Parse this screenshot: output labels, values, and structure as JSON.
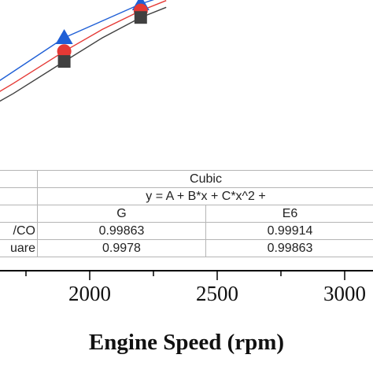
{
  "chart_data": {
    "type": "scatter",
    "xlabel": "Engine Speed (rpm)",
    "x_ticks": [
      "2000",
      "2500",
      "3000"
    ],
    "series": [
      {
        "color": "#1f5fd6",
        "marker": "triangle",
        "x": [
          1900,
          2200
        ],
        "y": [
          0.8,
          1.0
        ]
      },
      {
        "color": "#e53935",
        "marker": "circle",
        "x": [
          1900,
          2200
        ],
        "y": [
          0.72,
          0.96
        ]
      },
      {
        "color": "#404040",
        "marker": "square",
        "x": [
          1900,
          2200
        ],
        "y": [
          0.66,
          0.92
        ]
      }
    ],
    "fit_lines": [
      {
        "color": "#1f5fd6",
        "x": [
          1500,
          1700,
          1900,
          2050,
          2200,
          2300
        ],
        "y": [
          0.4,
          0.6,
          0.8,
          0.9,
          1.0,
          1.05
        ]
      },
      {
        "color": "#e53935",
        "x": [
          1500,
          1700,
          1900,
          2050,
          2200,
          2300
        ],
        "y": [
          0.35,
          0.53,
          0.72,
          0.85,
          0.96,
          1.02
        ]
      },
      {
        "color": "#404040",
        "x": [
          1500,
          1700,
          1900,
          2050,
          2200,
          2300
        ],
        "y": [
          0.3,
          0.47,
          0.66,
          0.8,
          0.92,
          0.98
        ]
      }
    ],
    "fit_table": {
      "model": "Cubic",
      "equation": "y = A + B*x + C*x^2 +",
      "col_headers": [
        "G",
        "E6"
      ],
      "rows": [
        {
          "label": "/CO",
          "values": [
            "0.99863",
            "0.99914"
          ]
        },
        {
          "label": "uare",
          "values": [
            "0.9978",
            "0.99863"
          ]
        }
      ]
    }
  }
}
